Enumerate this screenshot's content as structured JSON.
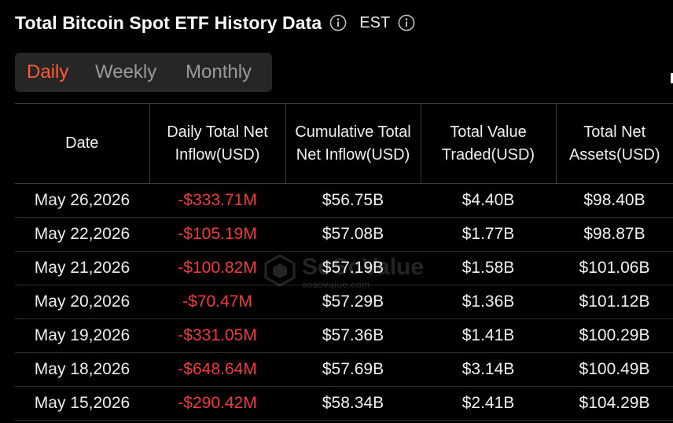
{
  "header": {
    "title": "Total Bitcoin Spot ETF History Data",
    "timezone": "EST"
  },
  "tabs": [
    {
      "label": "Daily",
      "active": true
    },
    {
      "label": "Weekly",
      "active": false
    },
    {
      "label": "Monthly",
      "active": false
    }
  ],
  "table": {
    "columns": {
      "date": "Date",
      "inflow": "Daily Total Net Inflow(USD)",
      "cumulative": "Cumulative Total Net Inflow(USD)",
      "traded": "Total Value Traded(USD)",
      "assets": "Total Net Assets(USD)"
    },
    "rows": [
      {
        "date": "May 26,2026",
        "inflow": "-$333.71M",
        "cumulative": "$56.75B",
        "traded": "$4.40B",
        "assets": "$98.40B"
      },
      {
        "date": "May 22,2026",
        "inflow": "-$105.19M",
        "cumulative": "$57.08B",
        "traded": "$1.77B",
        "assets": "$98.87B"
      },
      {
        "date": "May 21,2026",
        "inflow": "-$100.82M",
        "cumulative": "$57.19B",
        "traded": "$1.58B",
        "assets": "$101.06B"
      },
      {
        "date": "May 20,2026",
        "inflow": "-$70.47M",
        "cumulative": "$57.29B",
        "traded": "$1.36B",
        "assets": "$101.12B"
      },
      {
        "date": "May 19,2026",
        "inflow": "-$331.05M",
        "cumulative": "$57.36B",
        "traded": "$1.41B",
        "assets": "$100.29B"
      },
      {
        "date": "May 18,2026",
        "inflow": "-$648.64M",
        "cumulative": "$57.69B",
        "traded": "$3.14B",
        "assets": "$100.49B"
      },
      {
        "date": "May 15,2026",
        "inflow": "-$290.42M",
        "cumulative": "$58.34B",
        "traded": "$2.41B",
        "assets": "$104.29B"
      }
    ]
  },
  "watermark": {
    "brand": "SoSoValue",
    "url": "sosovalue.com"
  },
  "colors": {
    "negative": "#ef3b3b",
    "active_tab": "#ff5a36",
    "tab_bar": "#262626",
    "background": "#000000"
  },
  "icons": {
    "title_info": "info-icon",
    "timezone_info": "info-icon",
    "watermark_logo": "cube-logo-icon"
  }
}
